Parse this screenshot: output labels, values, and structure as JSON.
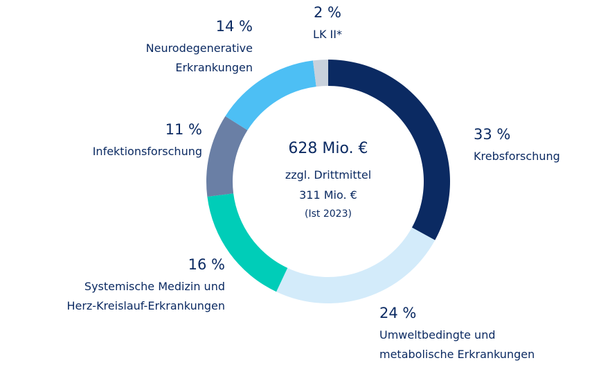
{
  "chart_data": {
    "type": "donut",
    "categories": [
      "Krebsforschung",
      "Umweltbedingte und\nmetabolische Erkrankungen",
      "Systemische Medizin und\nHerz-Kreislauf-Erkrankungen",
      "Infektionsforschung",
      "Neurodegenerative\nErkrankungen",
      "LK II*"
    ],
    "values": [
      33,
      24,
      16,
      11,
      14,
      2
    ],
    "value_labels": [
      "33 %",
      "24 %",
      "16 %",
      "11 %",
      "14 %",
      "2 %"
    ],
    "colors": [
      "#0b2a62",
      "#d3ebfa",
      "#00cdb8",
      "#6a7fa5",
      "#4dbff4",
      "#c8d1dc"
    ],
    "center_text": [
      "628 Mio. €",
      "zzgl. Drittmittel",
      "311 Mio. €",
      "(Ist 2023)"
    ]
  }
}
